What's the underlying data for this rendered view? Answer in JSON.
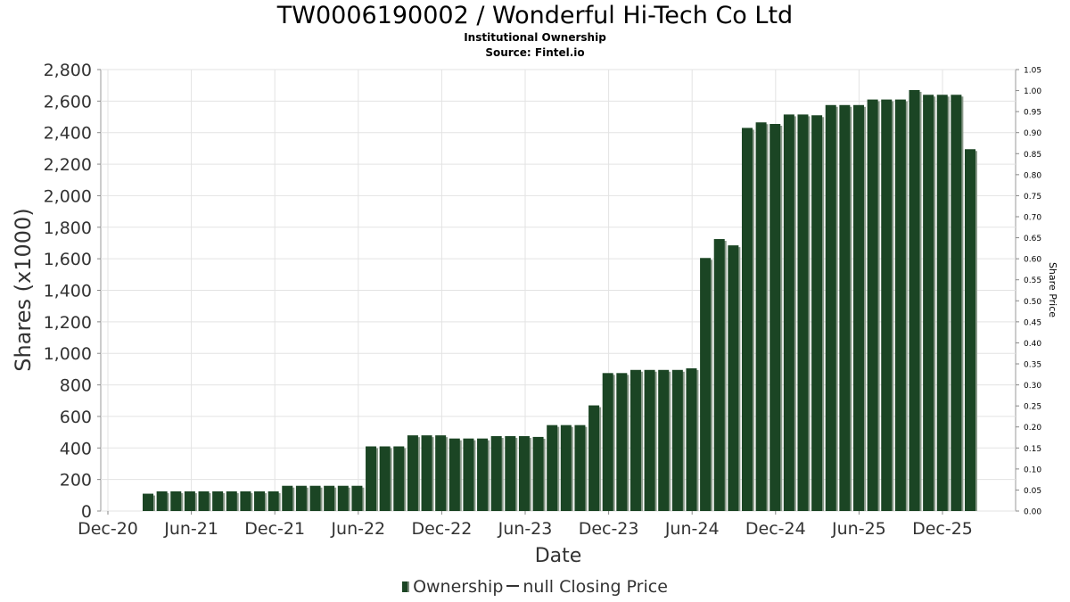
{
  "chart_data": {
    "type": "bar",
    "title": "TW0006190002 / Wonderful Hi-Tech Co Ltd",
    "subtitle": "Institutional Ownership",
    "source": "Source: Fintel.io",
    "xlabel": "Date",
    "ylabel": "Shares (x1000)",
    "y2label": "Share Price",
    "ylim": [
      0,
      2800
    ],
    "y2lim": [
      0,
      1.05
    ],
    "yticks": [
      "0",
      "200",
      "400",
      "600",
      "800",
      "1,000",
      "1,200",
      "1,400",
      "1,600",
      "1,800",
      "2,000",
      "2,200",
      "2,400",
      "2,600",
      "2,800"
    ],
    "y2ticks": [
      "0.00",
      "0.05",
      "0.10",
      "0.15",
      "0.20",
      "0.25",
      "0.30",
      "0.35",
      "0.40",
      "0.45",
      "0.50",
      "0.55",
      "0.60",
      "0.65",
      "0.70",
      "0.75",
      "0.80",
      "0.85",
      "0.90",
      "0.95",
      "1.00",
      "1.05"
    ],
    "xticks": [
      "Dec-20",
      "Jun-21",
      "Dec-21",
      "Jun-22",
      "Dec-22",
      "Jun-23",
      "Dec-23",
      "Jun-24",
      "Dec-24",
      "Jun-25",
      "Dec-25"
    ],
    "grid": true,
    "series": [
      {
        "name": "Ownership",
        "color": "#1b4524",
        "values": [
          110,
          125,
          125,
          125,
          125,
          125,
          125,
          125,
          125,
          125,
          160,
          160,
          160,
          160,
          160,
          160,
          410,
          410,
          410,
          480,
          480,
          480,
          460,
          460,
          460,
          475,
          475,
          475,
          470,
          545,
          545,
          545,
          670,
          875,
          875,
          895,
          895,
          895,
          895,
          905,
          1605,
          1725,
          1685,
          2430,
          2465,
          2455,
          2515,
          2515,
          2510,
          2575,
          2575,
          2575,
          2610,
          2610,
          2610,
          2670,
          2640,
          2640,
          2640,
          2295
        ]
      }
    ],
    "legend": {
      "ownership": "Ownership",
      "price": "null Closing Price",
      "position": "bottom"
    }
  }
}
